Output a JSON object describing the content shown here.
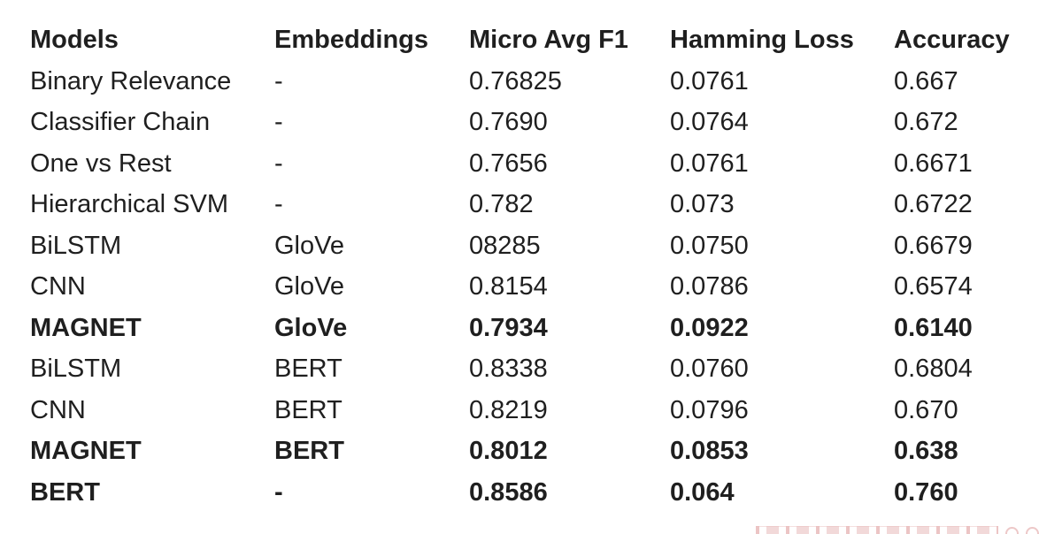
{
  "table": {
    "columns": [
      {
        "key": "model",
        "label": "Models"
      },
      {
        "key": "embedding",
        "label": "Embeddings"
      },
      {
        "key": "micro_f1",
        "label": "Micro Avg F1"
      },
      {
        "key": "hamming",
        "label": "Hamming Loss"
      },
      {
        "key": "accuracy",
        "label": "Accuracy"
      }
    ],
    "rows": [
      {
        "model": "Binary Relevance",
        "embedding": "-",
        "micro_f1": "0.76825",
        "hamming": "0.0761",
        "accuracy": "0.667",
        "bold": false
      },
      {
        "model": "Classifier Chain",
        "embedding": "-",
        "micro_f1": "0.7690",
        "hamming": "0.0764",
        "accuracy": "0.672",
        "bold": false
      },
      {
        "model": "One vs Rest",
        "embedding": "-",
        "micro_f1": "0.7656",
        "hamming": "0.0761",
        "accuracy": "0.6671",
        "bold": false
      },
      {
        "model": "Hierarchical SVM",
        "embedding": "-",
        "micro_f1": "0.782",
        "hamming": "0.073",
        "accuracy": "0.6722",
        "bold": false
      },
      {
        "model": "BiLSTM",
        "embedding": "GloVe",
        "micro_f1": "08285",
        "hamming": "0.0750",
        "accuracy": "0.6679",
        "bold": false
      },
      {
        "model": "CNN",
        "embedding": "GloVe",
        "micro_f1": "0.8154",
        "hamming": "0.0786",
        "accuracy": "0.6574",
        "bold": false
      },
      {
        "model": "MAGNET",
        "embedding": "GloVe",
        "micro_f1": "0.7934",
        "hamming": "0.0922",
        "accuracy": "0.6140",
        "bold": true
      },
      {
        "model": "BiLSTM",
        "embedding": "BERT",
        "micro_f1": "0.8338",
        "hamming": "0.0760",
        "accuracy": "0.6804",
        "bold": false
      },
      {
        "model": "CNN",
        "embedding": "BERT",
        "micro_f1": "0.8219",
        "hamming": "0.0796",
        "accuracy": "0.670",
        "bold": false
      },
      {
        "model": "MAGNET",
        "embedding": "BERT",
        "micro_f1": "0.8012",
        "hamming": "0.0853",
        "accuracy": "0.638",
        "bold": true
      },
      {
        "model": "BERT",
        "embedding": "-",
        "micro_f1": "0.8586",
        "hamming": "0.064",
        "accuracy": "0.760",
        "bold": true
      }
    ]
  },
  "text_color": "#1f1f1f",
  "background_color": "#ffffff",
  "watermark": {
    "color": "#d68282"
  }
}
